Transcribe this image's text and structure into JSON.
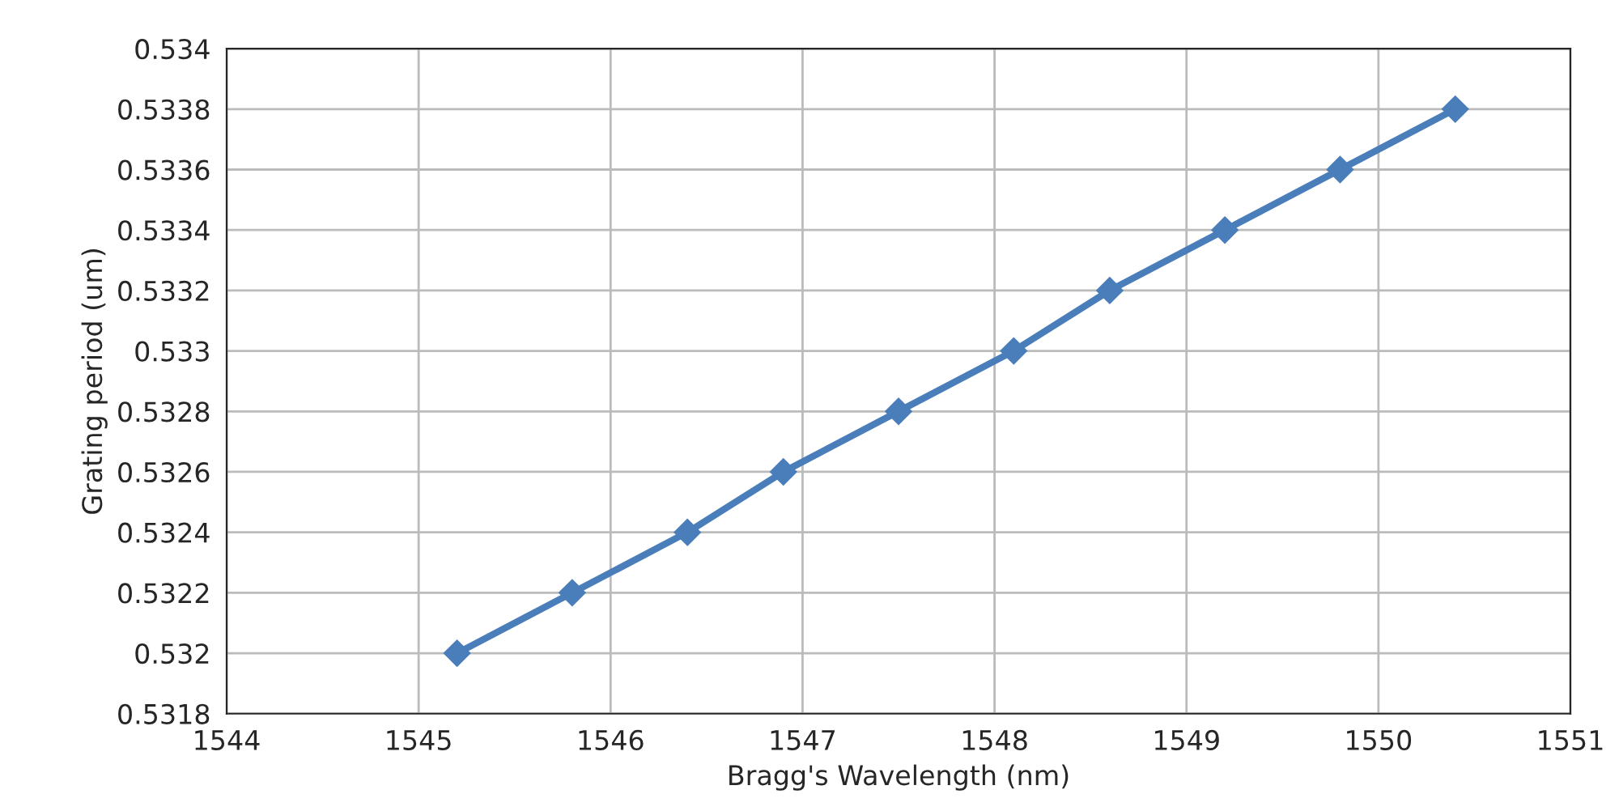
{
  "chart_data": {
    "type": "line",
    "xlabel": "Bragg's Wavelength (nm)",
    "ylabel": "Grating period (um)",
    "x": [
      1545.2,
      1545.8,
      1546.4,
      1546.9,
      1547.5,
      1548.1,
      1548.6,
      1549.2,
      1549.8,
      1550.4
    ],
    "series": [
      {
        "color": "#4a7ebb",
        "values": [
          0.532,
          0.5322,
          0.5324,
          0.5326,
          0.5328,
          0.533,
          0.5332,
          0.5334,
          0.5336,
          0.5338
        ]
      }
    ],
    "xlim": [
      1544,
      1551
    ],
    "xticks": [
      1544,
      1545,
      1546,
      1547,
      1548,
      1549,
      1550,
      1551
    ],
    "ylim": [
      0.5318,
      0.534
    ],
    "yticks": [
      {
        "value": 0.5318,
        "label": "0.5318"
      },
      {
        "value": 0.532,
        "label": "0.532"
      },
      {
        "value": 0.5322,
        "label": "0.5322"
      },
      {
        "value": 0.5324,
        "label": "0.5324"
      },
      {
        "value": 0.5326,
        "label": "0.5326"
      },
      {
        "value": 0.5328,
        "label": "0.5328"
      },
      {
        "value": 0.533,
        "label": "0.533"
      },
      {
        "value": 0.5332,
        "label": "0.5332"
      },
      {
        "value": 0.5334,
        "label": "0.5334"
      },
      {
        "value": 0.5336,
        "label": "0.5336"
      },
      {
        "value": 0.5338,
        "label": "0.5338"
      },
      {
        "value": 0.534,
        "label": "0.534"
      }
    ],
    "grid": true,
    "marker": "diamond",
    "line_style": "solid",
    "legend": false
  }
}
